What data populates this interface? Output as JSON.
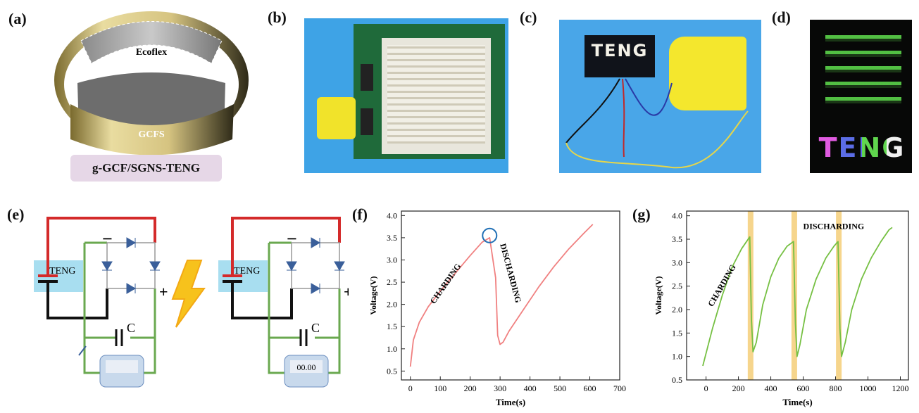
{
  "panels": {
    "a": {
      "label": "(a)",
      "top_text": "Ecoflex",
      "bottom_text": "GCFS",
      "caption": "g-GCF/SGNS-TENG"
    },
    "b": {
      "label": "(b)"
    },
    "c": {
      "label": "(c)",
      "display_text": "TENG"
    },
    "d": {
      "label": "(d)",
      "display_text": "TENG"
    },
    "e": {
      "label": "(e)",
      "teng_label": "TENG",
      "capacitor_label": "C",
      "minus": "−",
      "plus": "+",
      "digits": "00.00"
    },
    "f": {
      "label": "(f)"
    },
    "g": {
      "label": "(g)"
    }
  },
  "colors": {
    "red_wire": "#d42a2a",
    "green_wire": "#6aa84f",
    "curve_f": "#f08080",
    "curve_g": "#76c043",
    "highlight": "#f6d58c",
    "teng_box": "#a8def0"
  },
  "chart_data": [
    {
      "type": "line",
      "panel": "f",
      "xlabel": "Time(s)",
      "ylabel": "Voltage(V)",
      "xlim": [
        -30,
        700
      ],
      "ylim": [
        0.3,
        4.1
      ],
      "xticks": [
        "0",
        "100",
        "200",
        "300",
        "400",
        "500",
        "600",
        "700"
      ],
      "yticks": [
        "0.5",
        "1.0",
        "1.5",
        "2.0",
        "2.5",
        "3.0",
        "3.5",
        "4.0"
      ],
      "annotations": [
        "CHARDING",
        "DISCHARDING"
      ],
      "series": [
        {
          "x": [
            0,
            10,
            30,
            60,
            100,
            150,
            200,
            240,
            265,
            285,
            292,
            300,
            310,
            330,
            380,
            430,
            480,
            530,
            580,
            610
          ],
          "y": [
            0.6,
            1.2,
            1.6,
            1.95,
            2.3,
            2.7,
            3.1,
            3.4,
            3.5,
            2.6,
            1.3,
            1.1,
            1.15,
            1.4,
            1.9,
            2.4,
            2.85,
            3.25,
            3.6,
            3.8
          ]
        }
      ]
    },
    {
      "type": "line",
      "panel": "g",
      "xlabel": "Time(s)",
      "ylabel": "Voltage(V)",
      "xlim": [
        -120,
        1250
      ],
      "ylim": [
        0.5,
        4.1
      ],
      "xticks": [
        "0",
        "200",
        "400",
        "600",
        "800",
        "1000",
        "1200"
      ],
      "yticks": [
        "0.5",
        "1.0",
        "1.5",
        "2.0",
        "2.5",
        "3.0",
        "3.5",
        "4.0"
      ],
      "annotations": [
        "CHARDING",
        "DISCHARDING"
      ],
      "highlight_x": [
        275,
        545,
        820
      ],
      "series": [
        {
          "x": [
            -20,
            40,
            100,
            160,
            220,
            270,
            280,
            290,
            310,
            350,
            400,
            450,
            500,
            540,
            552,
            562,
            580,
            620,
            680,
            740,
            790,
            815,
            827,
            837,
            860,
            900,
            960,
            1020,
            1080,
            1130,
            1150
          ],
          "y": [
            0.8,
            1.6,
            2.3,
            2.9,
            3.3,
            3.55,
            1.8,
            1.1,
            1.3,
            2.1,
            2.7,
            3.1,
            3.35,
            3.45,
            1.7,
            1.0,
            1.25,
            2.0,
            2.65,
            3.1,
            3.35,
            3.45,
            1.6,
            1.0,
            1.3,
            2.0,
            2.65,
            3.1,
            3.45,
            3.7,
            3.75
          ]
        }
      ]
    }
  ]
}
